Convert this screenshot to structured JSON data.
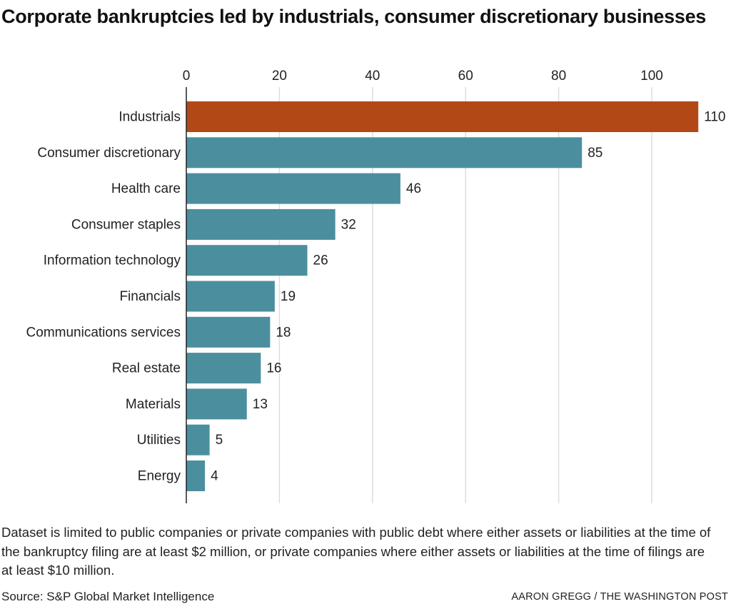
{
  "chart_data": {
    "type": "bar",
    "orientation": "horizontal",
    "title": "Corporate bankruptcies led by industrials, consumer discretionary businesses",
    "xlabel": "",
    "ylabel": "",
    "xlim": [
      0,
      110
    ],
    "x_ticks": [
      0,
      20,
      40,
      60,
      80,
      100
    ],
    "grid": true,
    "categories": [
      "Industrials",
      "Consumer discretionary",
      "Health care",
      "Consumer staples",
      "Information technology",
      "Financials",
      "Communications services",
      "Real estate",
      "Materials",
      "Utilities",
      "Energy"
    ],
    "values": [
      110,
      85,
      46,
      32,
      26,
      19,
      18,
      16,
      13,
      5,
      4
    ],
    "highlight_index": 0,
    "colors": {
      "highlight": "#b34817",
      "default": "#4b8f9f",
      "grid": "#dddddd",
      "axis": "#222222"
    }
  },
  "note": "Dataset is limited to public companies or private companies with public debt where either assets or liabilities at the time of the bankruptcy filing are at least $2 million, or private companies where either assets or liabilities at the time of filings are at least $10 million.",
  "source": "Source: S&P Global Market Intelligence",
  "credit": "AARON GREGG / THE WASHINGTON POST"
}
